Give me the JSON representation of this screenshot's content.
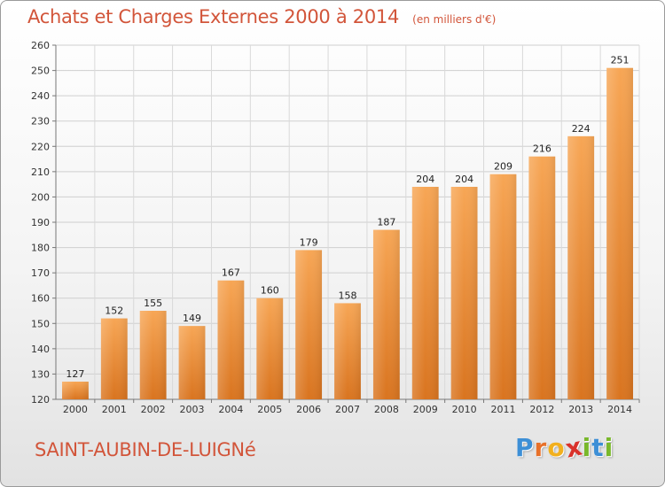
{
  "header": {
    "title": "Achats et Charges Externes 2000 à 2014",
    "subtitle": "(en milliers d'€)"
  },
  "footer": {
    "commune": "SAINT-AUBIN-DE-LUIGNé",
    "brand": {
      "letters": [
        "P",
        "r",
        "o",
        "x",
        "i",
        "t",
        "i"
      ],
      "colors": [
        "#3d8fd6",
        "#e8712a",
        "#f2b01e",
        "#d9322b",
        "#79b82b",
        "#3d8fd6",
        "#79b82b"
      ]
    }
  },
  "chart_data": {
    "type": "bar",
    "title": "Achats et Charges Externes 2000 à 2014",
    "subtitle": "(en milliers d'€)",
    "categories": [
      "2000",
      "2001",
      "2002",
      "2003",
      "2004",
      "2005",
      "2006",
      "2007",
      "2008",
      "2009",
      "2010",
      "2011",
      "2012",
      "2013",
      "2014"
    ],
    "values": [
      127,
      152,
      155,
      149,
      167,
      160,
      179,
      158,
      187,
      204,
      204,
      209,
      216,
      224,
      251
    ],
    "ylim": [
      120,
      260
    ],
    "yticks": [
      120,
      130,
      140,
      150,
      160,
      170,
      180,
      190,
      200,
      210,
      220,
      230,
      240,
      250,
      260
    ],
    "grid": true,
    "bar_color": "#f0913a",
    "legend": "none"
  }
}
